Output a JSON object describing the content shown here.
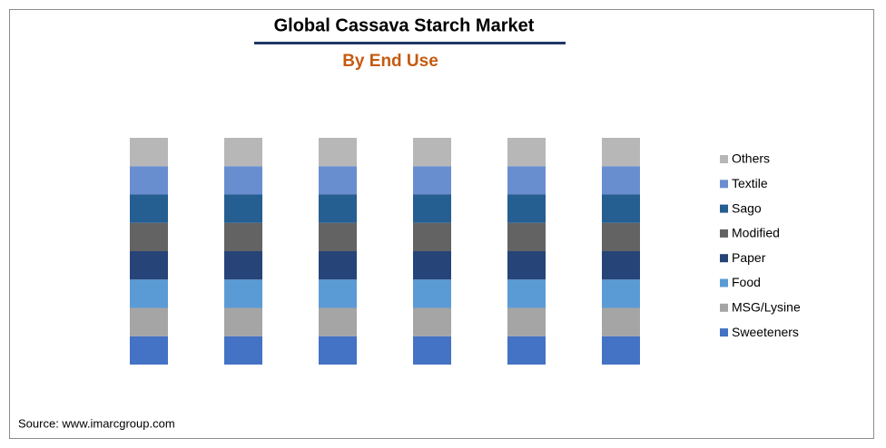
{
  "chart_data": {
    "type": "stacked_bar",
    "title": "Global Cassava Starch Market",
    "subtitle": "By End Use",
    "source": "Source: www.imarcgroup.com",
    "categories": [
      null,
      null,
      null,
      null,
      null,
      null
    ],
    "ylim": [
      0,
      100
    ],
    "legend": "right",
    "series": [
      {
        "name": "Sweeteners",
        "color": "#4472c4",
        "values": [
          12.5,
          12.5,
          12.5,
          12.5,
          12.5,
          12.5
        ]
      },
      {
        "name": "MSG/Lysine",
        "color": "#a5a5a5",
        "values": [
          12.5,
          12.5,
          12.5,
          12.5,
          12.5,
          12.5
        ]
      },
      {
        "name": "Food",
        "color": "#5b9bd5",
        "values": [
          12.5,
          12.5,
          12.5,
          12.5,
          12.5,
          12.5
        ]
      },
      {
        "name": "Paper",
        "color": "#264478",
        "values": [
          12.5,
          12.5,
          12.5,
          12.5,
          12.5,
          12.5
        ]
      },
      {
        "name": "Modified",
        "color": "#636363",
        "values": [
          12.5,
          12.5,
          12.5,
          12.5,
          12.5,
          12.5
        ]
      },
      {
        "name": "Sago",
        "color": "#255e91",
        "values": [
          12.5,
          12.5,
          12.5,
          12.5,
          12.5,
          12.5
        ]
      },
      {
        "name": "Textile",
        "color": "#698ed0",
        "values": [
          12.5,
          12.5,
          12.5,
          12.5,
          12.5,
          12.5
        ]
      },
      {
        "name": "Others",
        "color": "#b7b7b7",
        "values": [
          12.5,
          12.5,
          12.5,
          12.5,
          12.5,
          12.5
        ]
      }
    ]
  }
}
